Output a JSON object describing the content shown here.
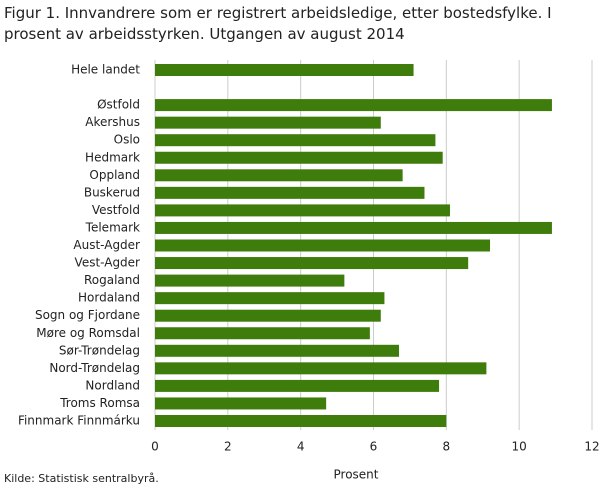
{
  "chart_data": {
    "type": "bar",
    "orientation": "horizontal",
    "title": "Figur 1. Innvandrere som er registrert arbeidsledige, etter bostedsfylke. I prosent av arbeidsstyrken. Utgangen av august 2014",
    "xlabel": "Prosent",
    "source": "Kilde: Statistisk sentralbyrå.",
    "categories": [
      "Hele landet",
      null,
      "Østfold",
      "Akershus",
      "Oslo",
      "Hedmark",
      "Oppland",
      "Buskerud",
      "Vestfold",
      "Telemark",
      "Aust-Agder",
      "Vest-Agder",
      "Rogaland",
      "Hordaland",
      "Sogn og Fjordane",
      "Møre og Romsdal",
      "Sør-Trøndelag",
      "Nord-Trøndelag",
      "Nordland",
      "Troms Romsa",
      "Finnmark Finnmárku"
    ],
    "values": [
      7.1,
      null,
      10.9,
      6.2,
      7.7,
      7.9,
      6.8,
      7.4,
      8.1,
      10.9,
      9.2,
      8.6,
      5.2,
      6.3,
      6.2,
      5.9,
      6.7,
      9.1,
      7.8,
      4.7,
      8.0
    ],
    "color": "#3e7d0b",
    "xlim": [
      0,
      12
    ],
    "xticks": [
      0,
      2,
      4,
      6,
      8,
      10,
      12
    ],
    "grid": true
  }
}
